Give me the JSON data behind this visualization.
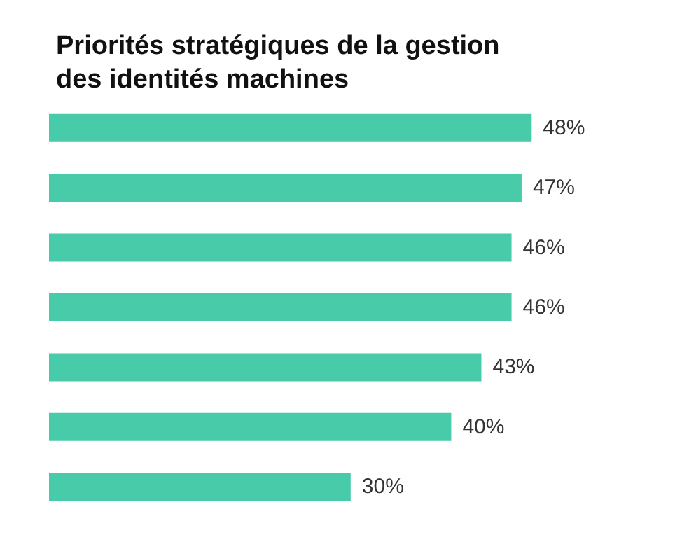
{
  "chart_data": {
    "type": "bar",
    "orientation": "horizontal",
    "title": "Priorités stratégiques de la gestion des identités machines",
    "categories": [
      null,
      null,
      null,
      null,
      null,
      null,
      null
    ],
    "values": [
      48,
      47,
      46,
      46,
      43,
      40,
      30
    ],
    "value_labels": [
      "48%",
      "47%",
      "46%",
      "46%",
      "43%",
      "40%",
      "30%"
    ],
    "color": "#48cba8"
  }
}
